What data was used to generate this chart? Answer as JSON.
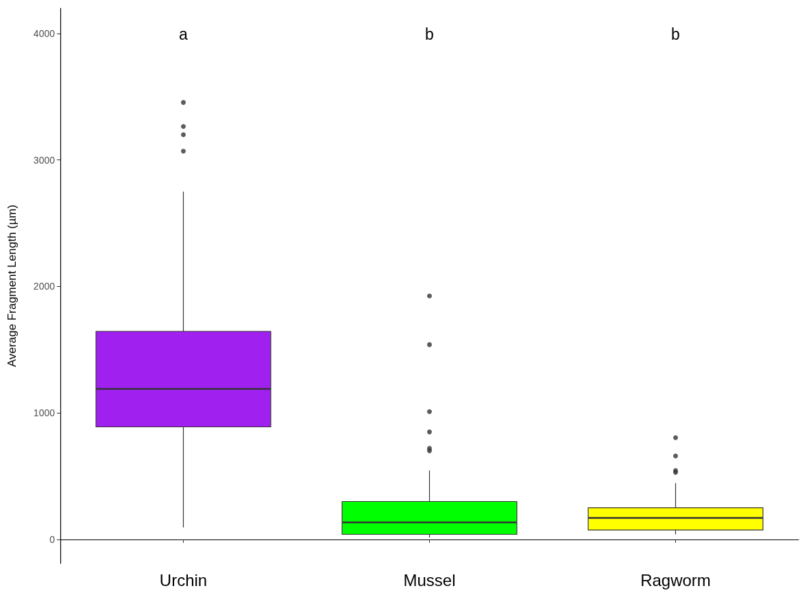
{
  "chart_data": {
    "type": "box",
    "categories": [
      "Urchin",
      "Mussel",
      "Ragworm"
    ],
    "ylabel": "Average Fragment Length (µm)",
    "ylim": [
      -190,
      4200
    ],
    "yticks": [
      0,
      1000,
      2000,
      3000,
      4000
    ],
    "grid": false,
    "colors": [
      "#a020f0",
      "#00ff00",
      "#ffff00"
    ],
    "boxes": [
      {
        "low": 95,
        "q1": 890,
        "median": 1190,
        "q3": 1645,
        "high": 2750,
        "outliers": [
          3455,
          3265,
          3200,
          3070
        ]
      },
      {
        "low": 15,
        "q1": 40,
        "median": 135,
        "q3": 300,
        "high": 545,
        "outliers": [
          1925,
          1540,
          1010,
          850,
          720,
          700
        ]
      },
      {
        "low": 40,
        "q1": 75,
        "median": 170,
        "q3": 250,
        "high": 445,
        "outliers": [
          805,
          660,
          545,
          530
        ]
      }
    ],
    "annotations": [
      "a",
      "b",
      "b"
    ]
  }
}
